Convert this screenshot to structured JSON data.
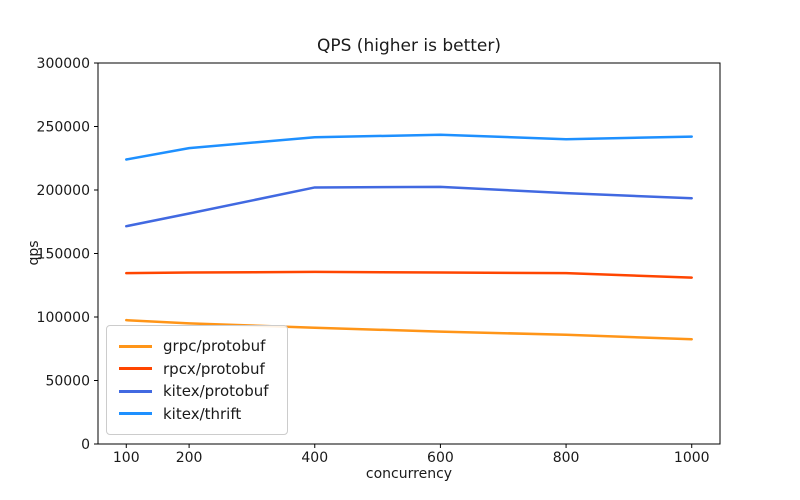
{
  "chart_data": {
    "type": "line",
    "title": "QPS (higher is better)",
    "xlabel": "concurrency",
    "ylabel": "qps",
    "x": [
      100,
      200,
      400,
      600,
      800,
      1000
    ],
    "xticks": [
      100,
      200,
      400,
      600,
      800,
      1000
    ],
    "yticks": [
      0,
      50000,
      100000,
      150000,
      200000,
      250000,
      300000
    ],
    "xlim": [
      55,
      1045
    ],
    "ylim": [
      0,
      300000
    ],
    "grid": false,
    "legend_position": "lower left",
    "series": [
      {
        "name": "grpc/protobuf",
        "color": "#FF9518",
        "values": [
          97500,
          95000,
          91500,
          88500,
          86000,
          82500
        ]
      },
      {
        "name": "rpcx/protobuf",
        "color": "#FF4500",
        "values": [
          134500,
          135000,
          135500,
          135000,
          134500,
          131000
        ]
      },
      {
        "name": "kitex/protobuf",
        "color": "#4169E1",
        "values": [
          171500,
          181500,
          202000,
          202500,
          197500,
          193500
        ]
      },
      {
        "name": "kitex/thrift",
        "color": "#1E90FF",
        "values": [
          224000,
          233000,
          241500,
          243500,
          240000,
          242000
        ]
      }
    ]
  }
}
